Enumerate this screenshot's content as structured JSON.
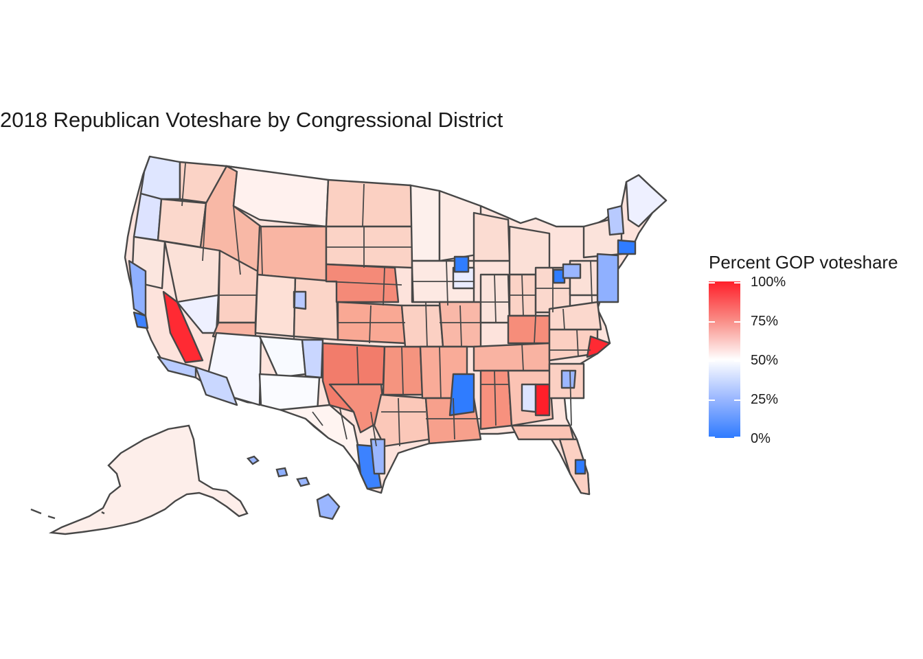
{
  "title": "2018 Republican Voteshare by Congressional District",
  "legend": {
    "title": "Percent GOP voteshare",
    "ticks": [
      "100%",
      "75%",
      "50%",
      "25%",
      "0%"
    ],
    "colors": {
      "high": "#ff1f2a",
      "mid": "#ffffff",
      "low": "#2f7bff"
    }
  },
  "colors": {
    "border": "#474747",
    "background": "#ffffff"
  }
}
